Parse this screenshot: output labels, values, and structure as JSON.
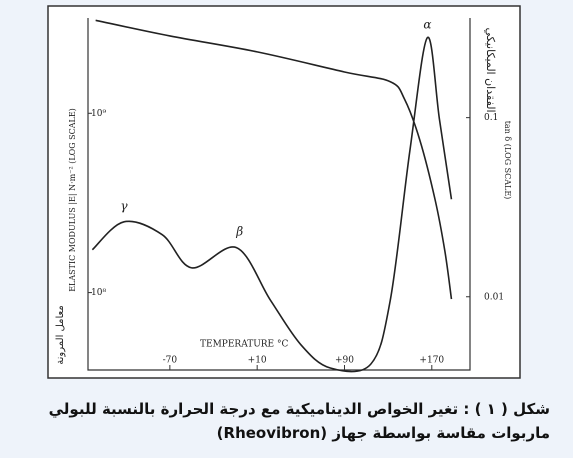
{
  "chart_data": {
    "type": "line",
    "xlabel": "TEMPERATURE °C",
    "ylabel": "ELASTIC MODULUS |E| N·m⁻² (LOG SCALE)",
    "ylabel_ar": "معامل المرونة",
    "y2label": "tan δ (LOG SCALE)",
    "y2label_ar": "الفقدان الميكانيكي",
    "xlim": [
      -145,
      205
    ],
    "xticks": [
      -70,
      {
        "value": 10,
        "label": "+10"
      },
      {
        "value": 90,
        "label": "+90"
      },
      {
        "value": 170,
        "label": "+170"
      }
    ],
    "ylim": [
      37000000,
      3400000000
    ],
    "log_y": true,
    "yticks": [
      {
        "value": 100000000,
        "label": "10⁸"
      },
      {
        "value": 1000000000,
        "label": "10⁹"
      }
    ],
    "y2lim": [
      0.0039,
      0.36
    ],
    "log_y2": true,
    "y2ticks": [
      0.01,
      0.1
    ],
    "series": [
      {
        "color": "#222222",
        "axis": "y",
        "x": [
          -138,
          -70,
          10,
          90,
          132,
          145,
          159,
          173,
          182,
          188
        ],
        "values": [
          3300000000,
          2700000000,
          2200000000,
          1700000000,
          1500000000,
          1200000000,
          710000000,
          330000000,
          170000000,
          92000000
        ]
      },
      {
        "color": "#222222",
        "axis": "y2",
        "x": [
          -141,
          -112,
          -77,
          -50,
          -9,
          22,
          50,
          77,
          114,
          132,
          150,
          166,
          177,
          188
        ],
        "values": [
          0.0183,
          0.0262,
          0.0222,
          0.0145,
          0.0188,
          0.0096,
          0.0054,
          0.004,
          0.0042,
          0.0096,
          0.066,
          0.28,
          0.098,
          0.035
        ]
      }
    ],
    "annotations": [
      {
        "text": "γ",
        "x": -112,
        "y": 0.032,
        "axis": "y2"
      },
      {
        "text": "β",
        "x": -6,
        "y": 0.023,
        "axis": "y2"
      },
      {
        "text": "α",
        "x": 166,
        "y": 0.33,
        "axis": "y2"
      }
    ]
  },
  "caption": {
    "line1": "شكل ( ١ ) :  تغير الخواص الديناميكية مع درجة الحرارة بالنسبة للبولي",
    "line2": "ماربوات مقاسة بواسطة جهاز (Rheovibron)"
  }
}
